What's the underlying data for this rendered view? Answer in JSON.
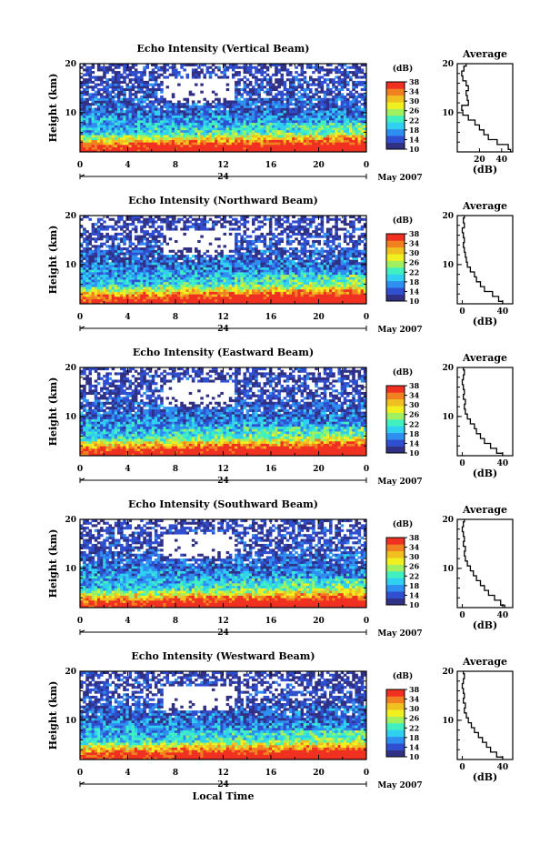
{
  "chart_data": {
    "type": "heatmap",
    "colorbar": {
      "unit": "(dB)",
      "ticks": [
        10,
        14,
        18,
        22,
        26,
        30,
        34,
        38
      ],
      "range": [
        10,
        38
      ],
      "colors": [
        "#303085",
        "#2f4fd0",
        "#2f8ff0",
        "#2fd0f0",
        "#40f0c0",
        "#a0f060",
        "#f0f020",
        "#f0c020",
        "#f08020",
        "#f03020"
      ]
    },
    "x_ticks": [
      "0",
      "4",
      "8",
      "12",
      "16",
      "20",
      "0"
    ],
    "x_range": [
      0,
      24
    ],
    "date_label": "24",
    "month_label": "May 2007",
    "xlabel": "Local Time",
    "y_ticks": [
      "20",
      "10"
    ],
    "y_range": [
      2,
      20
    ],
    "ylabel": "Height (km)",
    "profile_title": "Average",
    "profile_xlabel": "(dB)",
    "panels": [
      {
        "name": "vertical",
        "title": "Echo Intensity (Vertical Beam)",
        "profile_ticks": [
          "20",
          "40"
        ],
        "profile_xrange": [
          0,
          50
        ],
        "profile": [
          [
            2,
            48
          ],
          [
            3,
            46
          ],
          [
            4,
            36
          ],
          [
            5,
            28
          ],
          [
            6,
            24
          ],
          [
            7,
            20
          ],
          [
            8,
            16
          ],
          [
            9,
            10
          ],
          [
            10,
            5
          ],
          [
            11,
            4
          ],
          [
            12,
            10
          ],
          [
            13,
            9
          ],
          [
            14,
            8
          ],
          [
            15,
            10
          ],
          [
            16,
            8
          ],
          [
            17,
            5
          ],
          [
            18,
            4
          ],
          [
            19,
            6
          ],
          [
            20,
            8
          ]
        ]
      },
      {
        "name": "northward",
        "title": "Echo Intensity (Northward Beam)",
        "profile_ticks": [
          "0",
          "40"
        ],
        "profile_xrange": [
          -5,
          50
        ],
        "profile": [
          [
            2,
            40
          ],
          [
            3,
            36
          ],
          [
            4,
            30
          ],
          [
            5,
            22
          ],
          [
            6,
            18
          ],
          [
            7,
            14
          ],
          [
            8,
            12
          ],
          [
            9,
            8
          ],
          [
            10,
            5
          ],
          [
            11,
            4
          ],
          [
            12,
            3
          ],
          [
            13,
            2
          ],
          [
            14,
            1
          ],
          [
            15,
            2
          ],
          [
            16,
            1
          ],
          [
            17,
            0
          ],
          [
            18,
            2
          ],
          [
            19,
            1
          ],
          [
            20,
            2
          ]
        ]
      },
      {
        "name": "eastward",
        "title": "Echo Intensity (Eastward Beam)",
        "profile_ticks": [
          "0",
          "40"
        ],
        "profile_xrange": [
          -5,
          50
        ],
        "profile": [
          [
            2,
            40
          ],
          [
            3,
            34
          ],
          [
            4,
            28
          ],
          [
            5,
            22
          ],
          [
            6,
            18
          ],
          [
            7,
            14
          ],
          [
            8,
            12
          ],
          [
            9,
            8
          ],
          [
            10,
            5
          ],
          [
            11,
            3
          ],
          [
            12,
            2
          ],
          [
            13,
            3
          ],
          [
            14,
            1
          ],
          [
            15,
            2
          ],
          [
            16,
            1
          ],
          [
            17,
            0
          ],
          [
            18,
            1
          ],
          [
            19,
            2
          ],
          [
            20,
            1
          ]
        ]
      },
      {
        "name": "southward",
        "title": "Echo Intensity (Southward Beam)",
        "profile_ticks": [
          "0",
          "40"
        ],
        "profile_xrange": [
          -5,
          50
        ],
        "profile": [
          [
            2,
            42
          ],
          [
            3,
            38
          ],
          [
            4,
            32
          ],
          [
            5,
            26
          ],
          [
            6,
            22
          ],
          [
            7,
            18
          ],
          [
            8,
            14
          ],
          [
            9,
            11
          ],
          [
            10,
            8
          ],
          [
            11,
            5
          ],
          [
            12,
            3
          ],
          [
            13,
            2
          ],
          [
            14,
            3
          ],
          [
            15,
            1
          ],
          [
            16,
            2
          ],
          [
            17,
            1
          ],
          [
            18,
            0
          ],
          [
            19,
            1
          ],
          [
            20,
            2
          ]
        ]
      },
      {
        "name": "westward",
        "title": "Echo Intensity (Westward Beam)",
        "profile_ticks": [
          "0",
          "40"
        ],
        "profile_xrange": [
          -5,
          50
        ],
        "profile": [
          [
            2,
            40
          ],
          [
            3,
            34
          ],
          [
            4,
            28
          ],
          [
            5,
            24
          ],
          [
            6,
            20
          ],
          [
            7,
            16
          ],
          [
            8,
            12
          ],
          [
            9,
            9
          ],
          [
            10,
            6
          ],
          [
            11,
            4
          ],
          [
            12,
            2
          ],
          [
            13,
            3
          ],
          [
            14,
            1
          ],
          [
            15,
            2
          ],
          [
            16,
            1
          ],
          [
            17,
            0
          ],
          [
            18,
            1
          ],
          [
            19,
            2
          ],
          [
            20,
            1
          ]
        ]
      }
    ]
  }
}
